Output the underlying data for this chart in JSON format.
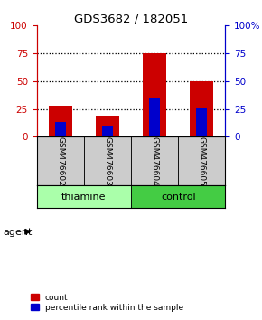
{
  "title": "GDS3682 / 182051",
  "samples": [
    "GSM476602",
    "GSM476603",
    "GSM476604",
    "GSM476605"
  ],
  "count_values": [
    28,
    19,
    75,
    50
  ],
  "percentile_values": [
    13,
    10,
    35,
    26
  ],
  "ylim": [
    0,
    100
  ],
  "yticks": [
    0,
    25,
    50,
    75,
    100
  ],
  "right_ytick_labels": [
    "0",
    "25",
    "50",
    "75",
    "100%"
  ],
  "left_ytick_labels": [
    "0",
    "25",
    "50",
    "75",
    "100"
  ],
  "bar_color": "#cc0000",
  "percentile_color": "#0000cc",
  "bar_width": 0.5,
  "groups": [
    {
      "label": "thiamine",
      "samples": [
        0,
        1
      ],
      "color": "#aaffaa"
    },
    {
      "label": "control",
      "samples": [
        2,
        3
      ],
      "color": "#44cc44"
    }
  ],
  "agent_label": "agent",
  "left_axis_color": "#cc0000",
  "right_axis_color": "#0000cc",
  "grid_color": "#000000",
  "sample_box_color": "#cccccc",
  "legend_count_label": "count",
  "legend_percentile_label": "percentile rank within the sample",
  "background_color": "#ffffff"
}
